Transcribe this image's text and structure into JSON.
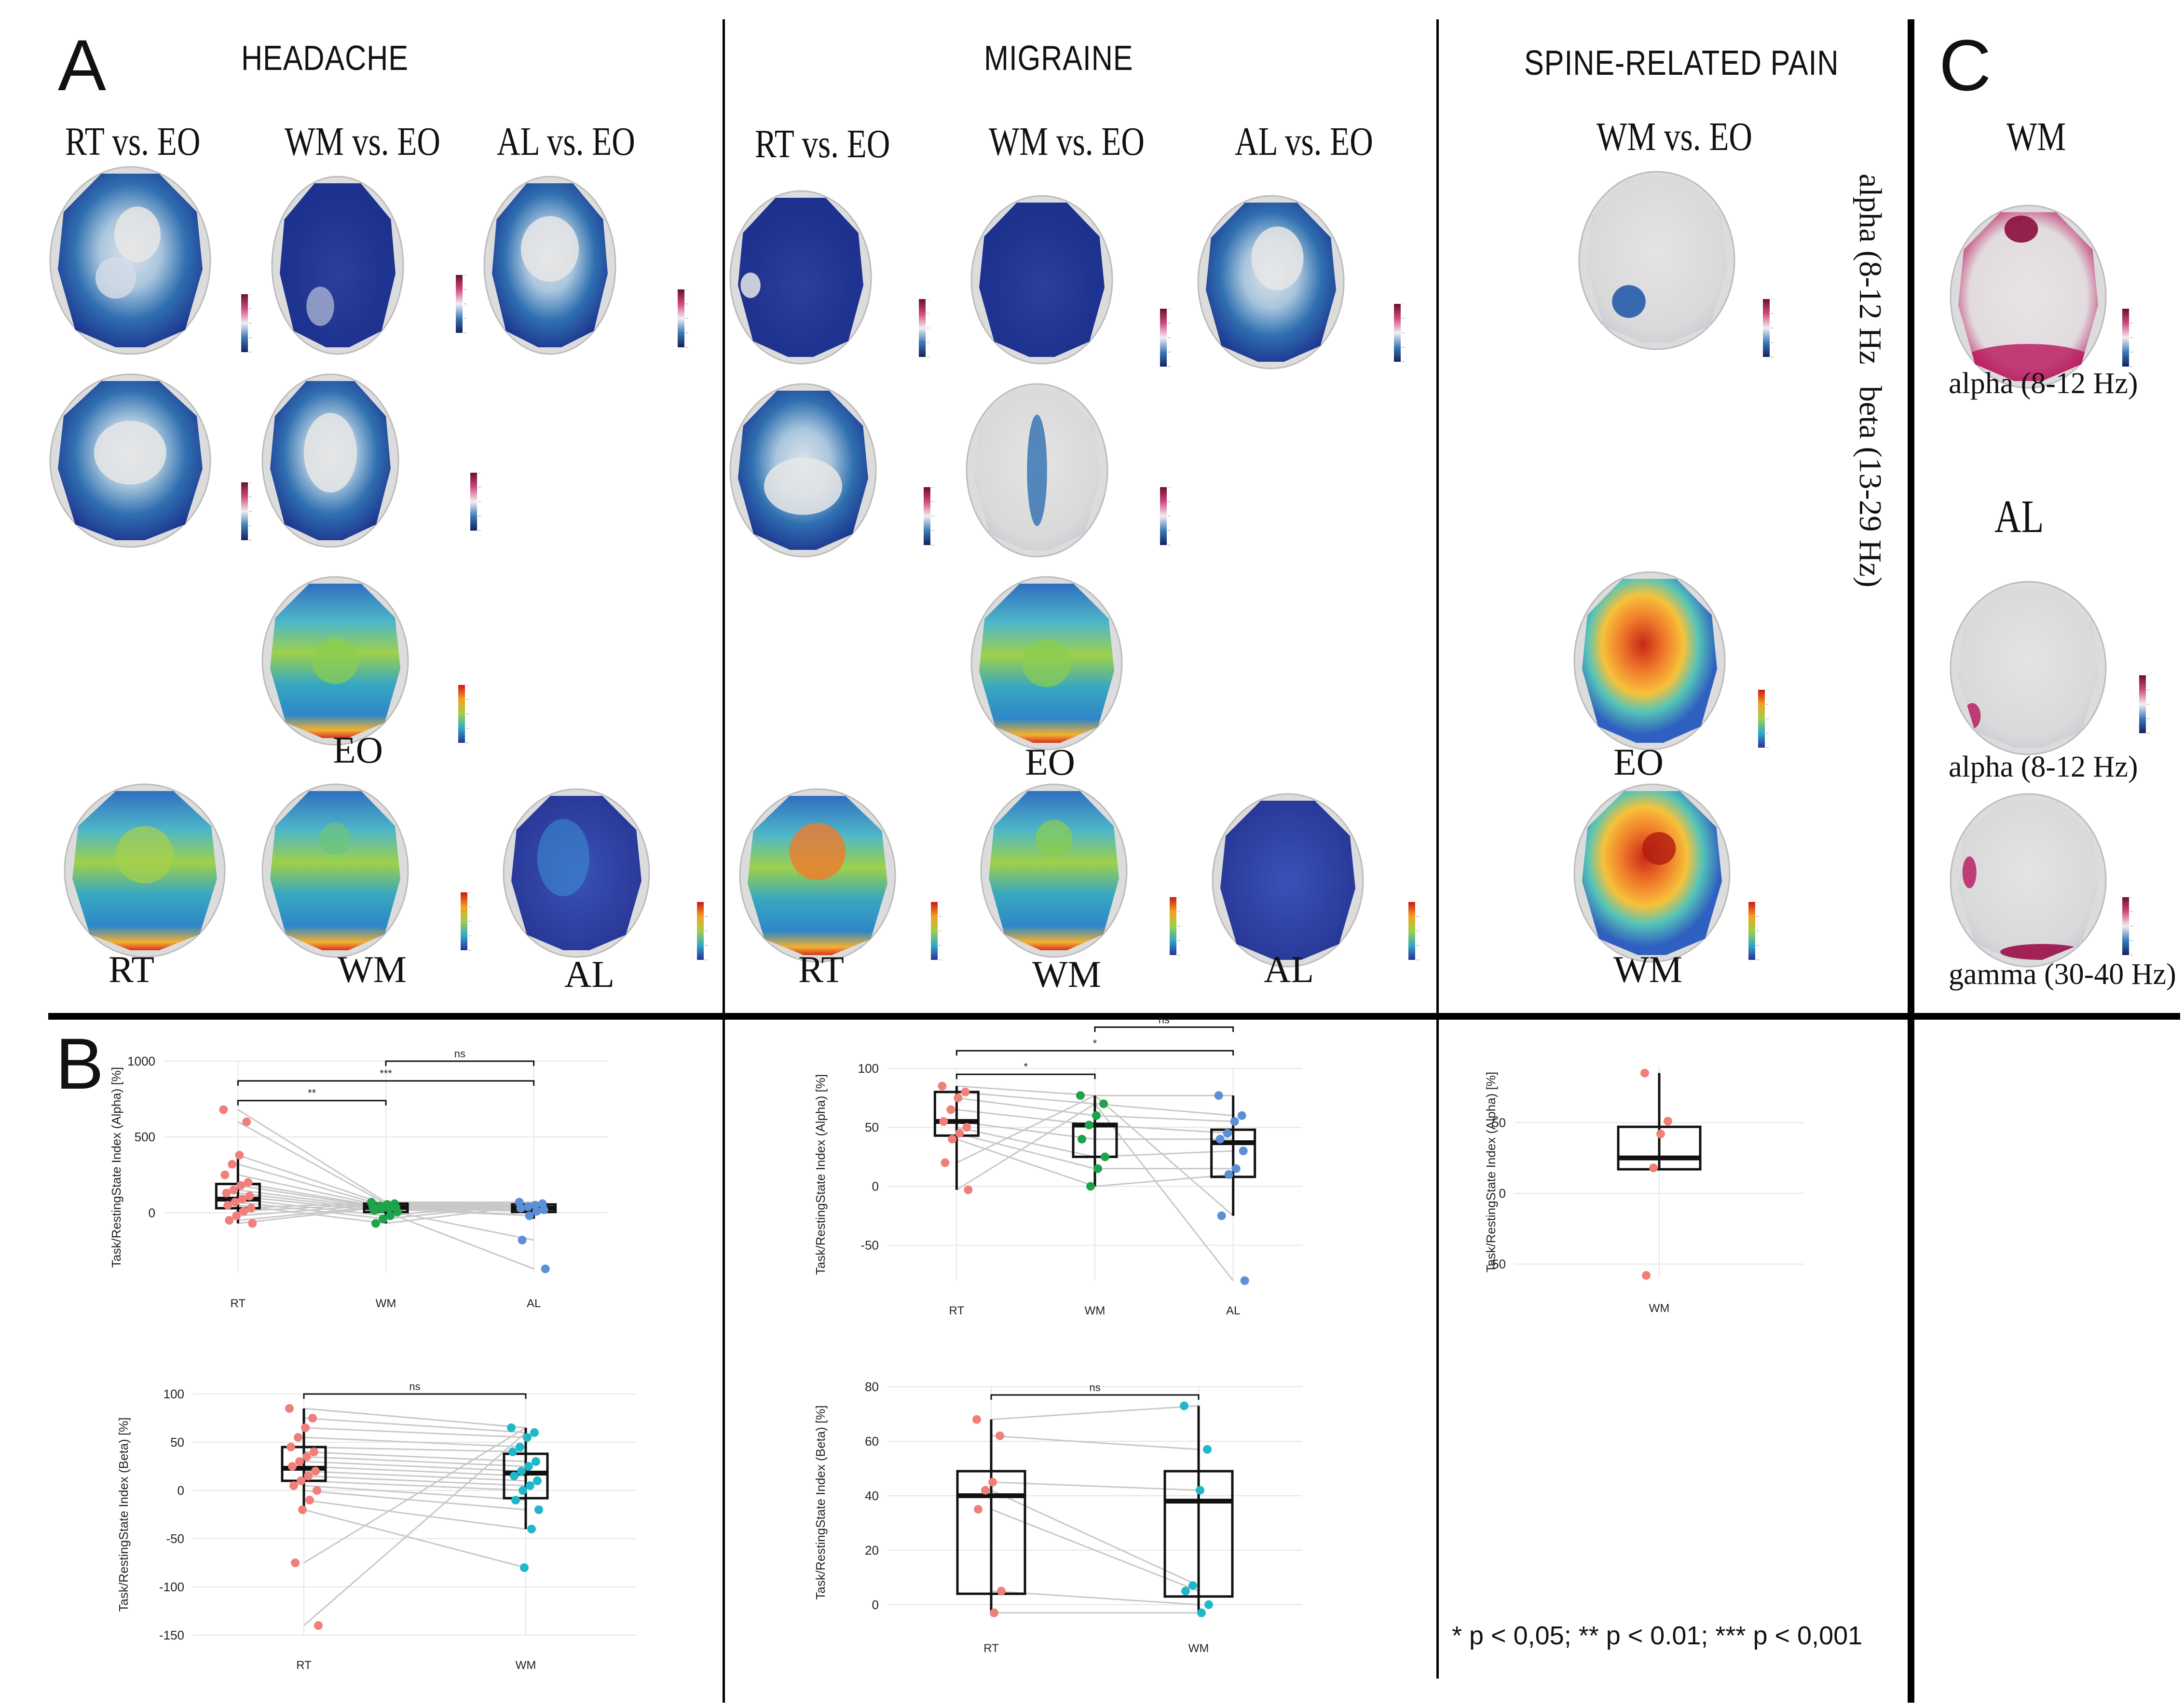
{
  "panels": {
    "a": "A",
    "b": "B",
    "c": "C"
  },
  "sections": {
    "headache": "HEADACHE",
    "migraine": "MIGRAINE",
    "spine": "SPINE-RELATED PAIN"
  },
  "conditions": {
    "rt_vs_eo": "RT vs. EO",
    "wm_vs_eo": "WM vs. EO",
    "al_vs_eo": "AL vs. EO"
  },
  "labels": {
    "eo": "EO",
    "rt": "RT",
    "wm": "WM",
    "al": "AL",
    "alpha": "alpha (8-12 Hz",
    "beta": "beta (13-29 Hz)",
    "alpha_c": "alpha (8-12 Hz)",
    "gamma_c": "gamma (30-40 Hz)"
  },
  "colors": {
    "rt": "#f07f7a",
    "wm_green": "#1fa34a",
    "al": "#5b8fd6",
    "wm_cyan": "#1fb8c8",
    "grid": "#e6e6e6",
    "paired_line": "#c8c8c8",
    "topo_blue": "#1b2f8c",
    "topo_magenta": "#b8145c"
  },
  "significance_note": "* p < 0,05; ** p < 0.01; *** p < 0,001",
  "chart_data": [
    {
      "id": "headache_alpha",
      "type": "box",
      "ylabel": "Task/RestingState Index (Alpha) [%]",
      "categories": [
        "RT",
        "WM",
        "AL"
      ],
      "ylim": [
        -400,
        1000
      ],
      "yticks": [
        0,
        500,
        1000
      ],
      "boxes": [
        {
          "q1": 30,
          "median": 90,
          "q3": 190,
          "wlo": -70,
          "whi": 380
        },
        {
          "q1": 5,
          "median": 35,
          "q3": 60,
          "wlo": -70,
          "whi": 70
        },
        {
          "q1": 5,
          "median": 30,
          "q3": 55,
          "wlo": -40,
          "whi": 70
        }
      ],
      "points": [
        [
          680,
          600,
          380,
          320,
          250,
          200,
          180,
          150,
          130,
          110,
          90,
          70,
          50,
          30,
          10,
          -20,
          -50,
          -70
        ],
        [
          70,
          60,
          55,
          45,
          40,
          35,
          30,
          25,
          15,
          5,
          -20,
          -40,
          -70
        ],
        [
          70,
          60,
          50,
          40,
          30,
          20,
          10,
          -20,
          -180,
          -370
        ]
      ],
      "brackets": [
        {
          "from": "RT",
          "to": "WM",
          "y": 740,
          "label": "**"
        },
        {
          "from": "RT",
          "to": "AL",
          "y": 870,
          "label": "***"
        },
        {
          "from": "WM",
          "to": "AL",
          "y": 1000,
          "label": "ns"
        }
      ]
    },
    {
      "id": "migraine_alpha",
      "type": "box",
      "ylabel": "Task/RestingState Index (Alpha) [%]",
      "categories": [
        "RT",
        "WM",
        "AL"
      ],
      "ylim": [
        -80,
        100
      ],
      "yticks": [
        -50,
        0,
        50,
        100
      ],
      "boxes": [
        {
          "q1": 43,
          "median": 55,
          "q3": 80,
          "wlo": -3,
          "whi": 85
        },
        {
          "q1": 25,
          "median": 52,
          "q3": 53,
          "wlo": 0,
          "whi": 77
        },
        {
          "q1": 8,
          "median": 37,
          "q3": 48,
          "wlo": -25,
          "whi": 77
        }
      ],
      "points": [
        [
          85,
          80,
          75,
          65,
          55,
          50,
          45,
          40,
          20,
          -3
        ],
        [
          77,
          70,
          60,
          52,
          40,
          25,
          15,
          0
        ],
        [
          77,
          60,
          55,
          45,
          40,
          30,
          15,
          10,
          -25,
          -80
        ]
      ],
      "brackets": [
        {
          "from": "RT",
          "to": "WM",
          "y": 95,
          "label": "*"
        },
        {
          "from": "RT",
          "to": "AL",
          "y": 115,
          "label": "*"
        },
        {
          "from": "WM",
          "to": "AL",
          "y": 135,
          "label": "ns"
        }
      ]
    },
    {
      "id": "spine_alpha",
      "type": "box",
      "ylabel": "Task/RestingState Index (Alpha) [%]",
      "categories": [
        "WM"
      ],
      "ylim": [
        -60,
        90
      ],
      "yticks": [
        -50,
        0,
        50
      ],
      "boxes": [
        {
          "q1": 17,
          "median": 25,
          "q3": 47,
          "wlo": 17,
          "whi": 85
        }
      ],
      "points": [
        [
          85,
          51,
          42,
          18,
          -58
        ]
      ]
    },
    {
      "id": "headache_beta",
      "type": "box",
      "ylabel": "Task/RestingState Index (Beta) [%]",
      "categories": [
        "RT",
        "WM"
      ],
      "ylim": [
        -150,
        100
      ],
      "yticks": [
        -150,
        -100,
        -50,
        0,
        50,
        100
      ],
      "boxes": [
        {
          "q1": 10,
          "median": 23,
          "q3": 45,
          "wlo": -20,
          "whi": 85
        },
        {
          "q1": -8,
          "median": 18,
          "q3": 38,
          "wlo": -40,
          "whi": 65
        }
      ],
      "points": [
        [
          85,
          75,
          65,
          55,
          45,
          40,
          35,
          30,
          25,
          20,
          15,
          10,
          5,
          0,
          -10,
          -20,
          -75,
          -140
        ],
        [
          65,
          60,
          55,
          45,
          40,
          30,
          25,
          20,
          15,
          10,
          5,
          0,
          -10,
          -20,
          -40,
          -80
        ]
      ],
      "brackets": [
        {
          "from": "RT",
          "to": "WM",
          "y": 100,
          "label": "ns"
        }
      ]
    },
    {
      "id": "migraine_beta",
      "type": "box",
      "ylabel": "Task/RestingState Index (Beta) [%]",
      "categories": [
        "RT",
        "WM"
      ],
      "ylim": [
        -5,
        80
      ],
      "yticks": [
        0,
        20,
        40,
        60,
        80
      ],
      "boxes": [
        {
          "q1": 4,
          "median": 40,
          "q3": 49,
          "wlo": -3,
          "whi": 68
        },
        {
          "q1": 3,
          "median": 38,
          "q3": 49,
          "wlo": -3,
          "whi": 73
        }
      ],
      "points": [
        [
          68,
          62,
          45,
          42,
          35,
          5,
          -3
        ],
        [
          73,
          57,
          42,
          7,
          5,
          0,
          -3
        ]
      ],
      "brackets": [
        {
          "from": "RT",
          "to": "WM",
          "y": 77,
          "label": "ns"
        }
      ]
    }
  ]
}
